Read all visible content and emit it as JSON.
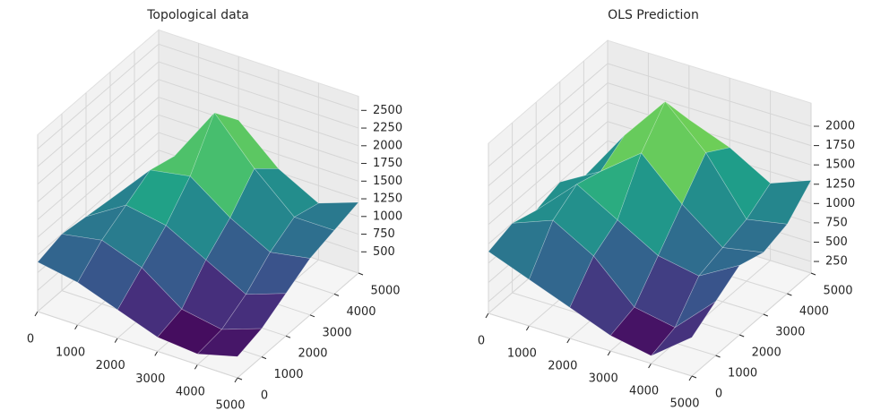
{
  "chart_data": [
    {
      "type": "surface",
      "title": "Topological data",
      "colormap": "viridis",
      "x": [
        0,
        1000,
        2000,
        3000,
        4000,
        5000
      ],
      "y": [
        0,
        1000,
        2000,
        3000,
        4000,
        5000
      ],
      "z": [
        [
          900,
          800,
          600,
          400,
          350,
          500
        ],
        [
          1000,
          1100,
          900,
          500,
          400,
          600
        ],
        [
          950,
          1300,
          1200,
          900,
          600,
          800
        ],
        [
          900,
          1500,
          1600,
          1200,
          900,
          1000
        ],
        [
          800,
          1400,
          2200,
          1600,
          1100,
          1100
        ],
        [
          700,
          1200,
          1800,
          1300,
          1000,
          1200
        ]
      ],
      "xlim": [
        0,
        5000
      ],
      "ylim": [
        0,
        5000
      ],
      "zlim": [
        200,
        2700
      ],
      "xticks": [
        0,
        1000,
        2000,
        3000,
        4000,
        5000
      ],
      "yticks": [
        0,
        1000,
        2000,
        3000,
        4000,
        5000
      ],
      "zticks": [
        500,
        750,
        1000,
        1250,
        1500,
        1750,
        2000,
        2250,
        2500
      ],
      "grid": true
    },
    {
      "type": "surface",
      "title": "OLS Prediction",
      "colormap": "viridis",
      "x": [
        0,
        1000,
        2000,
        3000,
        4000,
        5000
      ],
      "y": [
        0,
        1000,
        2000,
        3000,
        4000,
        5000
      ],
      "z": [
        [
          900,
          700,
          500,
          300,
          200,
          600
        ],
        [
          1000,
          1200,
          900,
          400,
          300,
          800
        ],
        [
          900,
          1400,
          1100,
          800,
          700,
          1000
        ],
        [
          1000,
          1300,
          1700,
          1200,
          800,
          900
        ],
        [
          800,
          1500,
          2100,
          1600,
          900,
          1000
        ],
        [
          700,
          1300,
          1600,
          1400,
          1100,
          1300
        ]
      ],
      "xlim": [
        0,
        5000
      ],
      "ylim": [
        0,
        5000
      ],
      "zlim": [
        100,
        2300
      ],
      "xticks": [
        0,
        1000,
        2000,
        3000,
        4000,
        5000
      ],
      "yticks": [
        0,
        1000,
        2000,
        3000,
        4000,
        5000
      ],
      "zticks": [
        250,
        500,
        750,
        1000,
        1250,
        1500,
        1750,
        2000
      ],
      "grid": true
    }
  ]
}
